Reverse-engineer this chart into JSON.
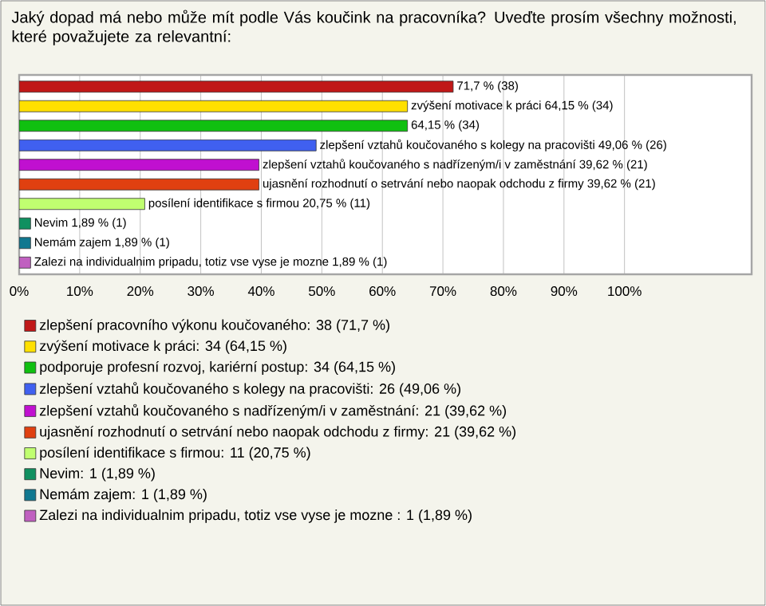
{
  "chart_data": {
    "type": "bar",
    "orientation": "horizontal",
    "title": "Jaký dopad má nebo může mít podle Vás koučink na pracovníka? Uveďte prosím všechny možnosti, které považujete za relevantní:",
    "categories": [
      null,
      null,
      null,
      null,
      null,
      null,
      null,
      null,
      null,
      null
    ],
    "series": [
      {
        "name": "zlepšení pracovního výkonu koučovaného: 38 (71,7 %)",
        "color": "#c01818",
        "values": [
          71.7,
          null,
          null,
          null,
          null,
          null,
          null,
          null,
          null,
          null
        ],
        "value_labels": [
          "71,7 % (38)",
          null,
          null,
          null,
          null,
          null,
          null,
          null,
          null,
          null
        ]
      },
      {
        "name": "zvýšení motivace k práci: 34 (64,15 %)",
        "color": "#ffe000",
        "values": [
          null,
          64.15,
          null,
          null,
          null,
          null,
          null,
          null,
          null,
          null
        ],
        "value_labels": [
          null,
          "zvýšení motivace k práci 64,15 % (34)",
          null,
          null,
          null,
          null,
          null,
          null,
          null,
          null
        ]
      },
      {
        "name": "podporuje profesní rozvoj, kariérní postup: 34 (64,15 %)",
        "color": "#10c010",
        "values": [
          null,
          null,
          64.15,
          null,
          null,
          null,
          null,
          null,
          null,
          null
        ],
        "value_labels": [
          null,
          null,
          "64,15 % (34)",
          null,
          null,
          null,
          null,
          null,
          null,
          null
        ]
      },
      {
        "name": "zlepšení vztahů koučovaného s kolegy na pracovišti: 26 (49,06 %)",
        "color": "#4060f0",
        "values": [
          null,
          null,
          null,
          49.06,
          null,
          null,
          null,
          null,
          null,
          null
        ],
        "value_labels": [
          null,
          null,
          null,
          "zlepšení vztahů koučovaného s kolegy na pracovišti 49,06 % (26)",
          null,
          null,
          null,
          null,
          null,
          null
        ]
      },
      {
        "name": "zlepšení vztahů koučovaného s nadřízeným/i v zaměstnání: 21 (39,62 %)",
        "color": "#c010d0",
        "values": [
          null,
          null,
          null,
          null,
          39.62,
          null,
          null,
          null,
          null,
          null
        ],
        "value_labels": [
          null,
          null,
          null,
          null,
          "zlepšení vztahů koučovaného s nadřízeným/i v zaměstnání 39,62 % (21)",
          null,
          null,
          null,
          null,
          null
        ]
      },
      {
        "name": "ujasnění rozhodnutí o setrvání nebo naopak odchodu z firmy: 21 (39,62 %)",
        "color": "#e04010",
        "values": [
          null,
          null,
          null,
          null,
          null,
          39.62,
          null,
          null,
          null,
          null
        ],
        "value_labels": [
          null,
          null,
          null,
          null,
          null,
          "ujasnění rozhodnutí o setrvání nebo naopak odchodu z firmy 39,62 % (21)",
          null,
          null,
          null,
          null
        ]
      },
      {
        "name": "posílení identifikace s firmou: 11 (20,75 %)",
        "color": "#c0ff70",
        "values": [
          null,
          null,
          null,
          null,
          null,
          null,
          20.75,
          null,
          null,
          null
        ],
        "value_labels": [
          null,
          null,
          null,
          null,
          null,
          null,
          "posílení identifikace s firmou 20,75 % (11)",
          null,
          null,
          null
        ]
      },
      {
        "name": "Nevim: 1 (1,89 %)",
        "color": "#109060",
        "values": [
          null,
          null,
          null,
          null,
          null,
          null,
          null,
          1.89,
          null,
          null
        ],
        "value_labels": [
          null,
          null,
          null,
          null,
          null,
          null,
          null,
          "Nevim 1,89 % (1)",
          null,
          null
        ]
      },
      {
        "name": "Nemám zajem: 1 (1,89 %)",
        "color": "#107890",
        "values": [
          null,
          null,
          null,
          null,
          null,
          null,
          null,
          null,
          1.89,
          null
        ],
        "value_labels": [
          null,
          null,
          null,
          null,
          null,
          null,
          null,
          null,
          "Nemám zajem 1,89 % (1)",
          null
        ]
      },
      {
        "name": "Zalezi na individualnim pripadu, totiz vse vyse je mozne : 1 (1,89 %)",
        "color": "#c060c0",
        "values": [
          null,
          null,
          null,
          null,
          null,
          null,
          null,
          null,
          null,
          1.89
        ],
        "value_labels": [
          null,
          null,
          null,
          null,
          null,
          null,
          null,
          null,
          null,
          "Zalezi na individualnim pripadu, totiz vse vyse je mozne  1,89 % (1)"
        ]
      }
    ],
    "xlim": [
      0,
      121
    ],
    "xticks": [
      {
        "value": 0,
        "label": "0%"
      },
      {
        "value": 10,
        "label": "10%"
      },
      {
        "value": 20,
        "label": "20%"
      },
      {
        "value": 30,
        "label": "30%"
      },
      {
        "value": 40,
        "label": "40%"
      },
      {
        "value": 50,
        "label": "50%"
      },
      {
        "value": 60,
        "label": "60%"
      },
      {
        "value": 70,
        "label": "70%"
      },
      {
        "value": 80,
        "label": "80%"
      },
      {
        "value": 90,
        "label": "90%"
      },
      {
        "value": 100,
        "label": "100%"
      }
    ],
    "grid": "x",
    "legend": "bottom",
    "tick_labels": "x"
  }
}
